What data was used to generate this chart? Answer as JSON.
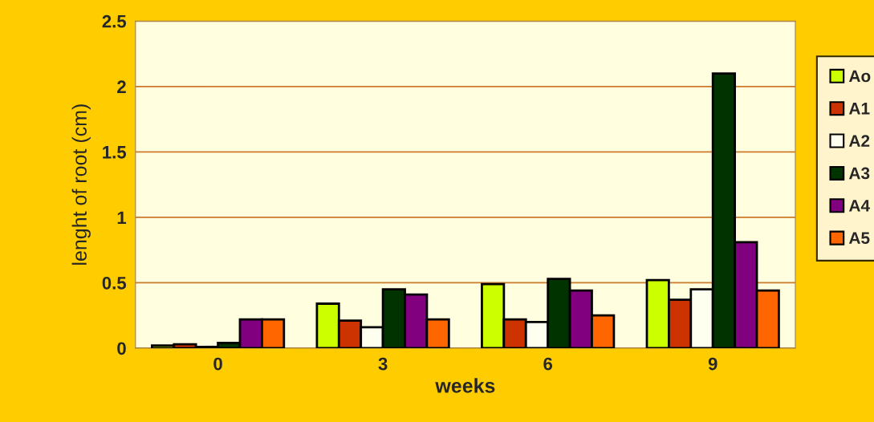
{
  "chart_data": {
    "type": "bar",
    "xlabel": "weeks",
    "ylabel": "lenght of root (cm)",
    "categories": [
      "0",
      "3",
      "6",
      "9"
    ],
    "series": [
      {
        "name": "Ao",
        "color": "#ccff00",
        "values": [
          0.02,
          0.34,
          0.49,
          0.52
        ]
      },
      {
        "name": "A1",
        "color": "#cc3300",
        "values": [
          0.03,
          0.21,
          0.22,
          0.37
        ]
      },
      {
        "name": "A2",
        "color": "#fffff0",
        "values": [
          0.01,
          0.16,
          0.2,
          0.45
        ]
      },
      {
        "name": "A3",
        "color": "#003300",
        "values": [
          0.04,
          0.45,
          0.53,
          2.1
        ]
      },
      {
        "name": "A4",
        "color": "#800080",
        "values": [
          0.22,
          0.41,
          0.44,
          0.81
        ]
      },
      {
        "name": "A5",
        "color": "#ff6600",
        "values": [
          0.22,
          0.22,
          0.25,
          0.44
        ]
      }
    ],
    "ylim": [
      0,
      2.5
    ],
    "yticks": [
      0,
      0.5,
      1,
      1.5,
      2,
      2.5
    ],
    "grid": "y",
    "legend": "right"
  }
}
